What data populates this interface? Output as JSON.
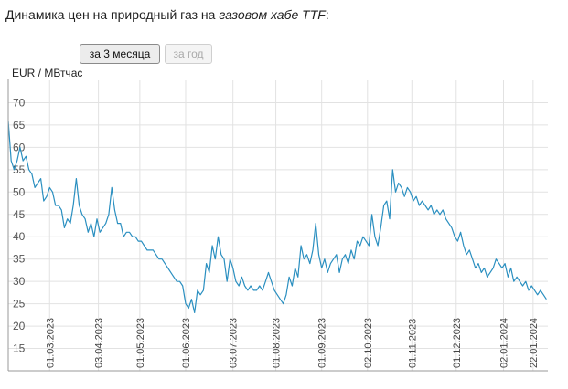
{
  "header": {
    "title_prefix": "Динамика цен на природный газ на ",
    "title_italic": "газовом хабе TTF",
    "title_suffix": ":"
  },
  "controls": {
    "range_3m_label": "за 3 месяца",
    "range_year_label": "за год"
  },
  "colors": {
    "line": "#2a8fc0",
    "grid": "#e2e2e2",
    "axis": "#999999"
  },
  "chart_data": {
    "type": "line",
    "ylabel": "EUR / МВтчас",
    "ylim": [
      10,
      75
    ],
    "yticks": [
      15,
      20,
      25,
      30,
      35,
      40,
      45,
      50,
      55,
      60,
      65,
      70
    ],
    "xlim": [
      "2023-02-01",
      "2024-01-31"
    ],
    "xticks": [
      "01.03.2023",
      "03.04.2023",
      "01.05.2023",
      "01.06.2023",
      "03.07.2023",
      "01.08.2023",
      "01.09.2023",
      "02.10.2023",
      "01.11.2023",
      "01.12.2023",
      "02.01.2024",
      "22.01.2024"
    ],
    "grid": true,
    "series": [
      {
        "points": [
          [
            "2023-02-01",
            66
          ],
          [
            "2023-02-03",
            57
          ],
          [
            "2023-02-05",
            55
          ],
          [
            "2023-02-07",
            57
          ],
          [
            "2023-02-09",
            60
          ],
          [
            "2023-02-11",
            57
          ],
          [
            "2023-02-13",
            58
          ],
          [
            "2023-02-15",
            55
          ],
          [
            "2023-02-17",
            54
          ],
          [
            "2023-02-19",
            51
          ],
          [
            "2023-02-21",
            52
          ],
          [
            "2023-02-23",
            53
          ],
          [
            "2023-02-25",
            48
          ],
          [
            "2023-02-27",
            49
          ],
          [
            "2023-03-01",
            51
          ],
          [
            "2023-03-03",
            50
          ],
          [
            "2023-03-05",
            47
          ],
          [
            "2023-03-07",
            47
          ],
          [
            "2023-03-09",
            46
          ],
          [
            "2023-03-11",
            42
          ],
          [
            "2023-03-13",
            44
          ],
          [
            "2023-03-15",
            43
          ],
          [
            "2023-03-17",
            47
          ],
          [
            "2023-03-19",
            53
          ],
          [
            "2023-03-21",
            47
          ],
          [
            "2023-03-23",
            45
          ],
          [
            "2023-03-25",
            44
          ],
          [
            "2023-03-27",
            41
          ],
          [
            "2023-03-29",
            43
          ],
          [
            "2023-03-31",
            40
          ],
          [
            "2023-04-02",
            44
          ],
          [
            "2023-04-04",
            41
          ],
          [
            "2023-04-06",
            42
          ],
          [
            "2023-04-08",
            43
          ],
          [
            "2023-04-10",
            45
          ],
          [
            "2023-04-12",
            51
          ],
          [
            "2023-04-14",
            46
          ],
          [
            "2023-04-16",
            43
          ],
          [
            "2023-04-18",
            43
          ],
          [
            "2023-04-20",
            40
          ],
          [
            "2023-04-22",
            41
          ],
          [
            "2023-04-24",
            41
          ],
          [
            "2023-04-26",
            40
          ],
          [
            "2023-04-28",
            40
          ],
          [
            "2023-04-30",
            39
          ],
          [
            "2023-05-02",
            39
          ],
          [
            "2023-05-04",
            38
          ],
          [
            "2023-05-06",
            37
          ],
          [
            "2023-05-08",
            37
          ],
          [
            "2023-05-10",
            37
          ],
          [
            "2023-05-12",
            36
          ],
          [
            "2023-05-14",
            35
          ],
          [
            "2023-05-16",
            35
          ],
          [
            "2023-05-18",
            34
          ],
          [
            "2023-05-20",
            33
          ],
          [
            "2023-05-22",
            32
          ],
          [
            "2023-05-24",
            31
          ],
          [
            "2023-05-26",
            30
          ],
          [
            "2023-05-28",
            30
          ],
          [
            "2023-05-30",
            29
          ],
          [
            "2023-06-01",
            25
          ],
          [
            "2023-06-03",
            24
          ],
          [
            "2023-06-05",
            26
          ],
          [
            "2023-06-07",
            23
          ],
          [
            "2023-06-09",
            28
          ],
          [
            "2023-06-11",
            27
          ],
          [
            "2023-06-13",
            28
          ],
          [
            "2023-06-15",
            34
          ],
          [
            "2023-06-17",
            32
          ],
          [
            "2023-06-19",
            38
          ],
          [
            "2023-06-21",
            35
          ],
          [
            "2023-06-23",
            40
          ],
          [
            "2023-06-25",
            36
          ],
          [
            "2023-06-27",
            35
          ],
          [
            "2023-06-29",
            30
          ],
          [
            "2023-07-01",
            35
          ],
          [
            "2023-07-03",
            33
          ],
          [
            "2023-07-05",
            30
          ],
          [
            "2023-07-07",
            29
          ],
          [
            "2023-07-09",
            31
          ],
          [
            "2023-07-11",
            29
          ],
          [
            "2023-07-13",
            28
          ],
          [
            "2023-07-15",
            29
          ],
          [
            "2023-07-17",
            28
          ],
          [
            "2023-07-19",
            28
          ],
          [
            "2023-07-21",
            29
          ],
          [
            "2023-07-23",
            28
          ],
          [
            "2023-07-25",
            30
          ],
          [
            "2023-07-27",
            32
          ],
          [
            "2023-07-29",
            30
          ],
          [
            "2023-07-31",
            28
          ],
          [
            "2023-08-02",
            27
          ],
          [
            "2023-08-04",
            26
          ],
          [
            "2023-08-06",
            25
          ],
          [
            "2023-08-08",
            27
          ],
          [
            "2023-08-10",
            31
          ],
          [
            "2023-08-12",
            29
          ],
          [
            "2023-08-14",
            33
          ],
          [
            "2023-08-16",
            31
          ],
          [
            "2023-08-18",
            38
          ],
          [
            "2023-08-20",
            35
          ],
          [
            "2023-08-22",
            36
          ],
          [
            "2023-08-24",
            34
          ],
          [
            "2023-08-26",
            37
          ],
          [
            "2023-08-28",
            43
          ],
          [
            "2023-08-30",
            36
          ],
          [
            "2023-09-01",
            33
          ],
          [
            "2023-09-03",
            35
          ],
          [
            "2023-09-05",
            32
          ],
          [
            "2023-09-07",
            34
          ],
          [
            "2023-09-09",
            35
          ],
          [
            "2023-09-11",
            36
          ],
          [
            "2023-09-13",
            32
          ],
          [
            "2023-09-15",
            35
          ],
          [
            "2023-09-17",
            36
          ],
          [
            "2023-09-19",
            34
          ],
          [
            "2023-09-21",
            37
          ],
          [
            "2023-09-23",
            35
          ],
          [
            "2023-09-25",
            39
          ],
          [
            "2023-09-27",
            38
          ],
          [
            "2023-09-29",
            40
          ],
          [
            "2023-10-01",
            39
          ],
          [
            "2023-10-03",
            38
          ],
          [
            "2023-10-05",
            45
          ],
          [
            "2023-10-07",
            40
          ],
          [
            "2023-10-09",
            38
          ],
          [
            "2023-10-11",
            42
          ],
          [
            "2023-10-13",
            47
          ],
          [
            "2023-10-15",
            48
          ],
          [
            "2023-10-17",
            44
          ],
          [
            "2023-10-19",
            55
          ],
          [
            "2023-10-21",
            50
          ],
          [
            "2023-10-23",
            52
          ],
          [
            "2023-10-25",
            51
          ],
          [
            "2023-10-27",
            49
          ],
          [
            "2023-10-29",
            51
          ],
          [
            "2023-10-31",
            50
          ],
          [
            "2023-11-02",
            48
          ],
          [
            "2023-11-04",
            49
          ],
          [
            "2023-11-06",
            47
          ],
          [
            "2023-11-08",
            48
          ],
          [
            "2023-11-10",
            47
          ],
          [
            "2023-11-12",
            46
          ],
          [
            "2023-11-14",
            47
          ],
          [
            "2023-11-16",
            45
          ],
          [
            "2023-11-18",
            46
          ],
          [
            "2023-11-20",
            45
          ],
          [
            "2023-11-22",
            46
          ],
          [
            "2023-11-24",
            44
          ],
          [
            "2023-11-26",
            43
          ],
          [
            "2023-11-28",
            42
          ],
          [
            "2023-11-30",
            40
          ],
          [
            "2023-12-02",
            39
          ],
          [
            "2023-12-04",
            41
          ],
          [
            "2023-12-06",
            38
          ],
          [
            "2023-12-08",
            36
          ],
          [
            "2023-12-10",
            37
          ],
          [
            "2023-12-12",
            35
          ],
          [
            "2023-12-14",
            33
          ],
          [
            "2023-12-16",
            34
          ],
          [
            "2023-12-18",
            32
          ],
          [
            "2023-12-20",
            33
          ],
          [
            "2023-12-22",
            31
          ],
          [
            "2023-12-24",
            32
          ],
          [
            "2023-12-26",
            33
          ],
          [
            "2023-12-28",
            35
          ],
          [
            "2023-12-30",
            34
          ],
          [
            "2024-01-01",
            33
          ],
          [
            "2024-01-03",
            34
          ],
          [
            "2024-01-05",
            31
          ],
          [
            "2024-01-07",
            33
          ],
          [
            "2024-01-09",
            30
          ],
          [
            "2024-01-11",
            31
          ],
          [
            "2024-01-13",
            30
          ],
          [
            "2024-01-15",
            29
          ],
          [
            "2024-01-17",
            30
          ],
          [
            "2024-01-19",
            28
          ],
          [
            "2024-01-21",
            29
          ],
          [
            "2024-01-23",
            28
          ],
          [
            "2024-01-25",
            27
          ],
          [
            "2024-01-27",
            28
          ],
          [
            "2024-01-29",
            27
          ],
          [
            "2024-01-31",
            26
          ]
        ]
      }
    ]
  }
}
